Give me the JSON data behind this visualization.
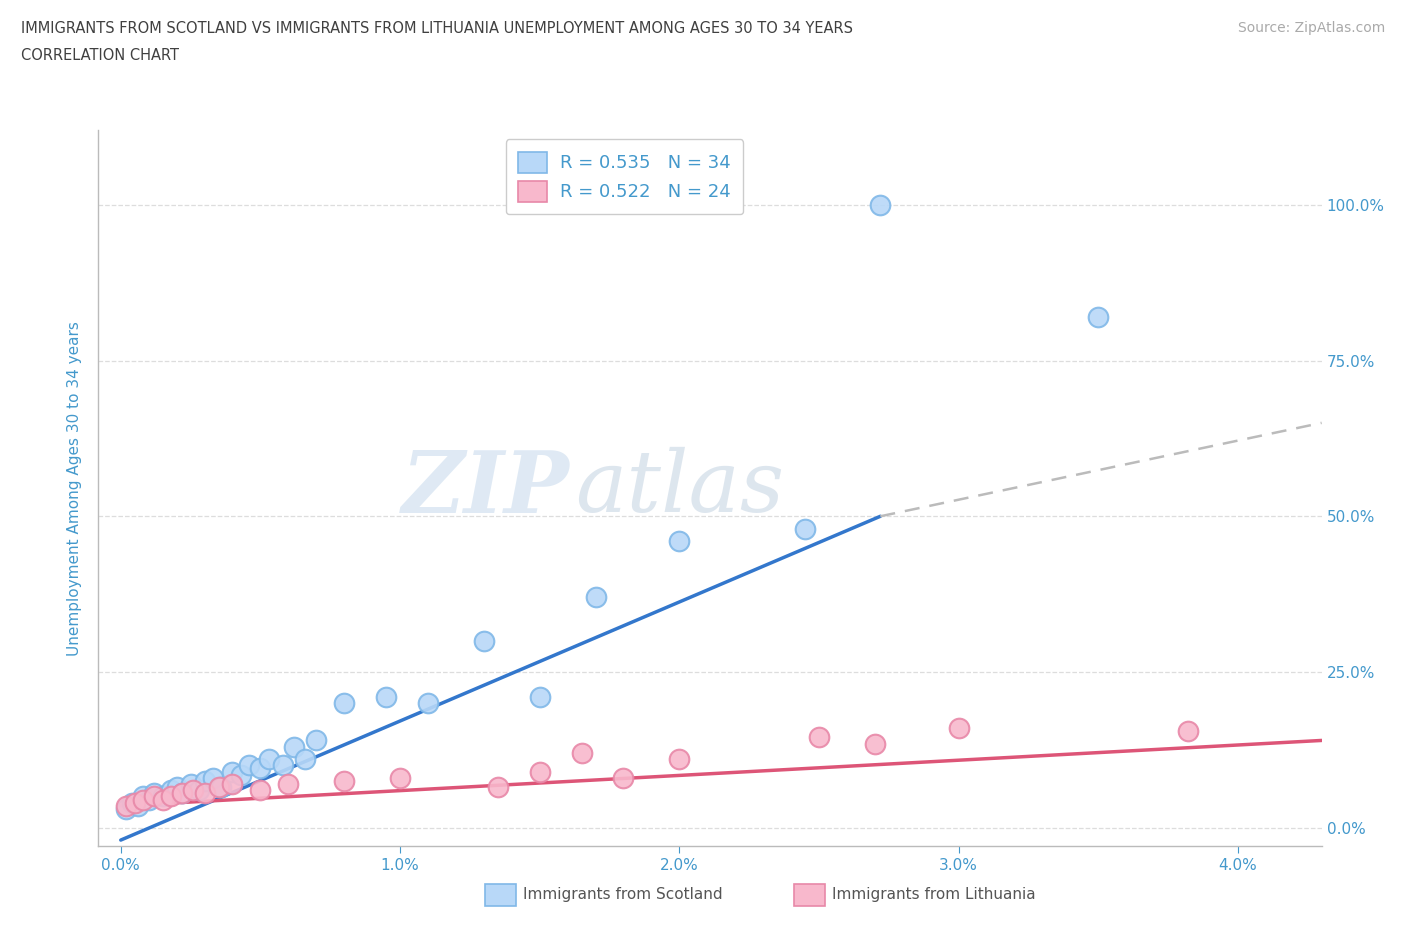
{
  "title_line1": "IMMIGRANTS FROM SCOTLAND VS IMMIGRANTS FROM LITHUANIA UNEMPLOYMENT AMONG AGES 30 TO 34 YEARS",
  "title_line2": "CORRELATION CHART",
  "source": "Source: ZipAtlas.com",
  "ylabel": "Unemployment Among Ages 30 to 34 years",
  "x_ticks": [
    0.0,
    1.0,
    2.0,
    3.0,
    4.0
  ],
  "x_tick_labels": [
    "0.0%",
    "1.0%",
    "2.0%",
    "3.0%",
    "4.0%"
  ],
  "y_ticks": [
    0.0,
    25.0,
    50.0,
    75.0,
    100.0
  ],
  "y_tick_labels": [
    "0.0%",
    "25.0%",
    "50.0%",
    "75.0%",
    "100.0%"
  ],
  "xlim": [
    -0.08,
    4.3
  ],
  "ylim": [
    -3.0,
    112.0
  ],
  "scotland_circle_face": "#b8d8f8",
  "scotland_circle_edge": "#80b8e8",
  "lithuania_circle_face": "#f8b8cc",
  "lithuania_circle_edge": "#e888a8",
  "regression_scotland_color": "#3377cc",
  "regression_lithuania_color": "#dd5577",
  "regression_dashed_color": "#bbbbbb",
  "scotland_R": 0.535,
  "scotland_N": 34,
  "lithuania_R": 0.522,
  "lithuania_N": 24,
  "legend_label_scotland": "Immigrants from Scotland",
  "legend_label_lithuania": "Immigrants from Lithuania",
  "watermark_zip": "ZIP",
  "watermark_atlas": "atlas",
  "background_color": "#ffffff",
  "grid_color": "#dddddd",
  "title_color": "#404040",
  "axis_label_color": "#4499cc",
  "scotland_x": [
    0.02,
    0.04,
    0.06,
    0.08,
    0.1,
    0.12,
    0.15,
    0.18,
    0.2,
    0.22,
    0.25,
    0.28,
    0.3,
    0.33,
    0.36,
    0.4,
    0.43,
    0.46,
    0.5,
    0.53,
    0.58,
    0.62,
    0.66,
    0.7,
    0.8,
    0.95,
    1.1,
    1.3,
    1.5,
    1.7,
    2.0,
    2.45,
    2.72,
    3.5
  ],
  "scotland_y": [
    3.0,
    4.0,
    3.5,
    5.0,
    4.5,
    5.5,
    5.0,
    6.0,
    6.5,
    5.5,
    7.0,
    6.0,
    7.5,
    8.0,
    6.5,
    9.0,
    8.5,
    10.0,
    9.5,
    11.0,
    10.0,
    13.0,
    11.0,
    14.0,
    20.0,
    21.0,
    20.0,
    30.0,
    21.0,
    37.0,
    46.0,
    48.0,
    100.0,
    82.0
  ],
  "lithuania_x": [
    0.02,
    0.05,
    0.08,
    0.12,
    0.15,
    0.18,
    0.22,
    0.26,
    0.3,
    0.35,
    0.4,
    0.5,
    0.6,
    0.8,
    1.0,
    1.35,
    1.5,
    1.65,
    1.8,
    2.0,
    2.5,
    2.7,
    3.0,
    3.82
  ],
  "lithuania_y": [
    3.5,
    4.0,
    4.5,
    5.0,
    4.5,
    5.0,
    5.5,
    6.0,
    5.5,
    6.5,
    7.0,
    6.0,
    7.0,
    7.5,
    8.0,
    6.5,
    9.0,
    12.0,
    8.0,
    11.0,
    14.5,
    13.5,
    16.0,
    15.5
  ],
  "sc_reg_x0": 0.0,
  "sc_reg_y0": -2.0,
  "sc_reg_x1": 2.72,
  "sc_reg_y1": 50.0,
  "sc_dash_x0": 2.72,
  "sc_dash_y0": 50.0,
  "sc_dash_x1": 4.3,
  "sc_dash_y1": 65.0,
  "li_reg_x0": 0.0,
  "li_reg_y0": 3.5,
  "li_reg_x1": 4.3,
  "li_reg_y1": 14.0
}
